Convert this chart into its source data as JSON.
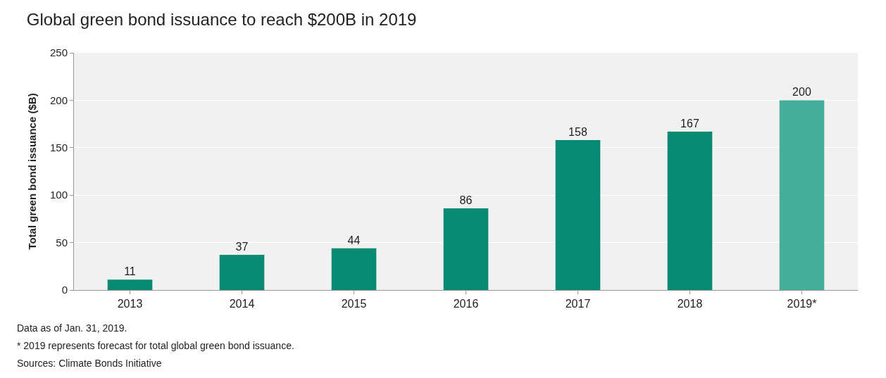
{
  "chart_data": {
    "type": "bar",
    "title": "Global green bond issuance to reach $200B in 2019",
    "ylabel": "Total green bond issuance ($B)",
    "categories": [
      "2013",
      "2014",
      "2015",
      "2016",
      "2017",
      "2018",
      "2019*"
    ],
    "values": [
      11,
      37,
      44,
      86,
      158,
      167,
      200
    ],
    "colors": [
      "#078a72",
      "#078a72",
      "#078a72",
      "#078a72",
      "#078a72",
      "#078a72",
      "#45ae99"
    ],
    "ylim": [
      0,
      250
    ],
    "yticks": [
      0,
      50,
      100,
      150,
      200,
      250
    ],
    "grid": "y",
    "data_labels": true,
    "annotations": [
      "Data as of Jan. 31, 2019.",
      "* 2019 represents forecast for total global green bond issuance.",
      "Sources: Climate Bonds Initiative"
    ]
  }
}
